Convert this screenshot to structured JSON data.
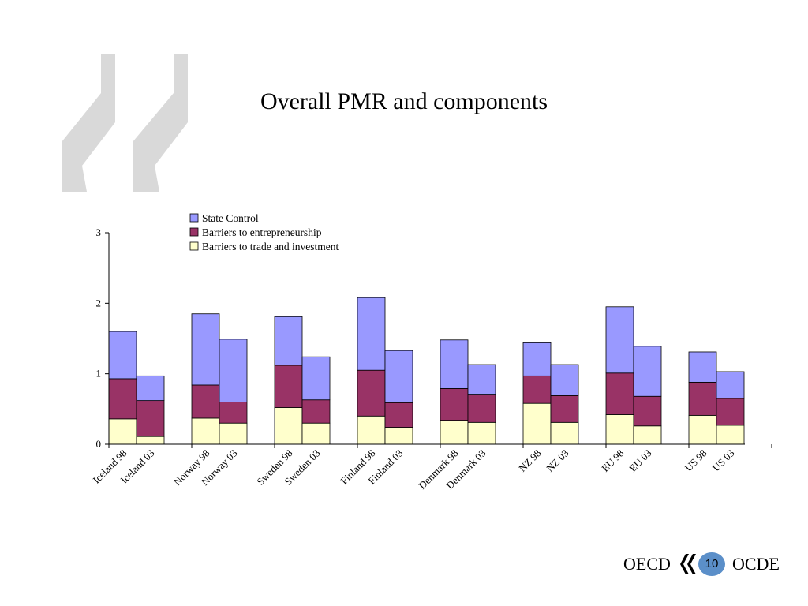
{
  "slide": {
    "title": "Overall PMR and components"
  },
  "footer": {
    "left_text": "OECD",
    "right_text": "OCDE",
    "page_number": "10"
  },
  "icons": {
    "watermark": "quote-mark-icon",
    "footer_logo": "oecd-logo-icon"
  },
  "colors": {
    "state_control": "#9999ff",
    "barriers_entrepreneurship": "#993366",
    "barriers_trade": "#ffffcc",
    "watermark": "#d9d9d9"
  },
  "chart_data": {
    "type": "bar",
    "stacked": true,
    "title": "",
    "xlabel": "",
    "ylabel": "",
    "ylim": [
      0,
      3
    ],
    "yticks": [
      0,
      1,
      2,
      3
    ],
    "legend_position": "top-center",
    "grid": false,
    "categories": [
      "Iceland 98",
      "Iceland 03",
      "Norway 98",
      "Norway 03",
      "Sweden 98",
      "Sweden 03",
      "Finland 98",
      "Finland 03",
      "Denmark 98",
      "Denmark 03",
      "NZ 98",
      "NZ 03",
      "EU 98",
      "EU 03",
      "US 98",
      "US 03"
    ],
    "series": [
      {
        "name": "Barriers to trade and investment",
        "color": "#ffffcc",
        "values": [
          0.36,
          0.11,
          0.37,
          0.3,
          0.52,
          0.3,
          0.4,
          0.24,
          0.34,
          0.31,
          0.58,
          0.31,
          0.42,
          0.26,
          0.41,
          0.27
        ]
      },
      {
        "name": "Barriers to entrepreneurship",
        "color": "#993366",
        "values": [
          0.57,
          0.51,
          0.47,
          0.3,
          0.6,
          0.33,
          0.65,
          0.35,
          0.45,
          0.4,
          0.39,
          0.38,
          0.59,
          0.42,
          0.47,
          0.38
        ]
      },
      {
        "name": "State Control",
        "color": "#9999ff",
        "values": [
          0.67,
          0.35,
          1.01,
          0.89,
          0.69,
          0.61,
          1.03,
          0.74,
          0.69,
          0.42,
          0.47,
          0.44,
          0.94,
          0.71,
          0.43,
          0.38
        ]
      }
    ],
    "legend_order": [
      "State Control",
      "Barriers to entrepreneurship",
      "Barriers to trade and investment"
    ]
  }
}
